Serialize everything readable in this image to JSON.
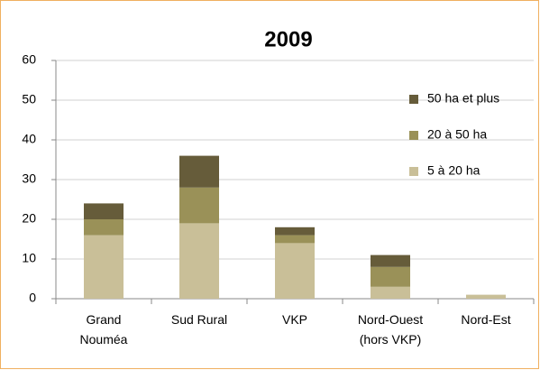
{
  "chart_data": {
    "type": "stacked_bar",
    "title": "2009",
    "categories": [
      "Grand\nNouméa",
      "Sud Rural",
      "VKP",
      "Nord-Ouest\n(hors VKP)",
      "Nord-Est"
    ],
    "series": [
      {
        "name": "5 à 20 ha",
        "color": "#c9bf98",
        "values": [
          16,
          19,
          14,
          3,
          1
        ]
      },
      {
        "name": "20 à 50 ha",
        "color": "#9a9158",
        "values": [
          4,
          9,
          2,
          5,
          0
        ]
      },
      {
        "name": "50 ha et plus",
        "color": "#665c3a",
        "values": [
          4,
          8,
          2,
          3,
          0
        ]
      }
    ],
    "ylim": [
      0,
      60
    ],
    "yticks": [
      0,
      10,
      20,
      30,
      40,
      50,
      60
    ],
    "grid": true,
    "legend": "right"
  }
}
